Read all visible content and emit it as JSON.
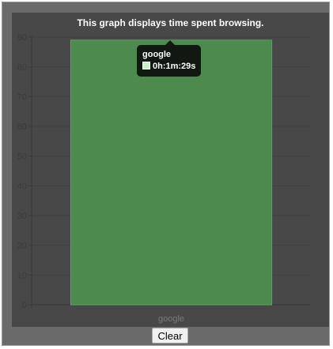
{
  "chart_data": {
    "type": "bar",
    "title": "This graph displays time spent browsing.",
    "categories": [
      "google"
    ],
    "values": [
      89
    ],
    "ylim": [
      0,
      90
    ],
    "yticks": [
      "0",
      "10",
      "20",
      "30",
      "40",
      "50",
      "60",
      "70",
      "80",
      "90"
    ],
    "grid": true,
    "bar_color": "#4d8a4d",
    "bar_border_color": "#5aa35a"
  },
  "tooltip": {
    "category": "google",
    "value_text": "0h:1m:29s"
  },
  "actions": {
    "clear_label": "Clear"
  }
}
